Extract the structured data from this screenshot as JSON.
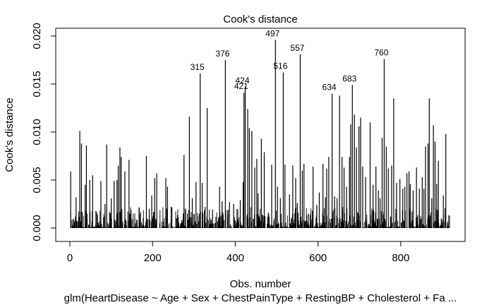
{
  "chart_data": {
    "type": "bar",
    "title": "Cook's distance",
    "xlabel": "Obs. number",
    "ylabel": "Cook's distance",
    "subtitle": "glm(HeartDisease ~ Age + Sex + ChestPainType + RestingBP + Cholesterol + Fa ...",
    "xlim": [
      0,
      918
    ],
    "ylim": [
      0.0,
      0.02
    ],
    "x_ticks": [
      0,
      200,
      400,
      600,
      800
    ],
    "y_ticks": [
      0.0,
      0.005,
      0.01,
      0.015,
      0.02
    ],
    "x_tick_labels": [
      "0",
      "200",
      "400",
      "600",
      "800"
    ],
    "y_tick_labels": [
      "0.000",
      "0.005",
      "0.010",
      "0.015",
      "0.020"
    ],
    "n_obs": 918,
    "grid": false,
    "labeled_points": [
      {
        "x": 315,
        "y": 0.0161,
        "label": "315"
      },
      {
        "x": 376,
        "y": 0.0175,
        "label": "376"
      },
      {
        "x": 421,
        "y": 0.0141,
        "label": "421"
      },
      {
        "x": 424,
        "y": 0.0147,
        "label": "424"
      },
      {
        "x": 497,
        "y": 0.0196,
        "label": "497"
      },
      {
        "x": 516,
        "y": 0.0162,
        "label": "516"
      },
      {
        "x": 557,
        "y": 0.0181,
        "label": "557"
      },
      {
        "x": 634,
        "y": 0.014,
        "label": "634"
      },
      {
        "x": 683,
        "y": 0.0149,
        "label": "683"
      },
      {
        "x": 760,
        "y": 0.0176,
        "label": "760"
      }
    ],
    "spikes": [
      [
        2,
        0.0059
      ],
      [
        15,
        0.0032
      ],
      [
        24,
        0.0101
      ],
      [
        28,
        0.0088
      ],
      [
        37,
        0.0045
      ],
      [
        40,
        0.0086
      ],
      [
        48,
        0.005
      ],
      [
        55,
        0.0055
      ],
      [
        63,
        0.0018
      ],
      [
        75,
        0.0049
      ],
      [
        85,
        0.0025
      ],
      [
        89,
        0.0087
      ],
      [
        100,
        0.0031
      ],
      [
        107,
        0.0049
      ],
      [
        114,
        0.005
      ],
      [
        117,
        0.0065
      ],
      [
        121,
        0.0084
      ],
      [
        124,
        0.0074
      ],
      [
        133,
        0.0059
      ],
      [
        143,
        0.0071
      ],
      [
        157,
        0.001
      ],
      [
        170,
        0.0008
      ],
      [
        185,
        0.0075
      ],
      [
        192,
        0.002
      ],
      [
        198,
        0.0034
      ],
      [
        205,
        0.0052
      ],
      [
        210,
        0.0057
      ],
      [
        232,
        0.0052
      ],
      [
        236,
        0.0043
      ],
      [
        245,
        0.0022
      ],
      [
        268,
        0.0005
      ],
      [
        276,
        0.0076
      ],
      [
        289,
        0.0116
      ],
      [
        296,
        0.0031
      ],
      [
        305,
        0.0048
      ],
      [
        315,
        0.0161
      ],
      [
        320,
        0.0047
      ],
      [
        327,
        0.0022
      ],
      [
        332,
        0.0125
      ],
      [
        345,
        0.0019
      ],
      [
        362,
        0.0043
      ],
      [
        368,
        0.0028
      ],
      [
        376,
        0.0175
      ],
      [
        386,
        0.0027
      ],
      [
        396,
        0.0025
      ],
      [
        412,
        0.0029
      ],
      [
        419,
        0.0048
      ],
      [
        421,
        0.0141
      ],
      [
        424,
        0.0147
      ],
      [
        430,
        0.0124
      ],
      [
        434,
        0.0104
      ],
      [
        440,
        0.0101
      ],
      [
        447,
        0.0063
      ],
      [
        452,
        0.0072
      ],
      [
        455,
        0.0036
      ],
      [
        463,
        0.0093
      ],
      [
        470,
        0.0079
      ],
      [
        480,
        0.0016
      ],
      [
        488,
        0.0066
      ],
      [
        497,
        0.0196
      ],
      [
        502,
        0.0043
      ],
      [
        509,
        0.0031
      ],
      [
        516,
        0.0162
      ],
      [
        520,
        0.0066
      ],
      [
        531,
        0.0035
      ],
      [
        539,
        0.0065
      ],
      [
        546,
        0.0052
      ],
      [
        550,
        0.0026
      ],
      [
        557,
        0.0181
      ],
      [
        562,
        0.006
      ],
      [
        566,
        0.0067
      ],
      [
        577,
        0.0015
      ],
      [
        588,
        0.0064
      ],
      [
        597,
        0.0024
      ],
      [
        603,
        0.0037
      ],
      [
        612,
        0.0067
      ],
      [
        618,
        0.0032
      ],
      [
        621,
        0.0062
      ],
      [
        626,
        0.0074
      ],
      [
        634,
        0.014
      ],
      [
        640,
        0.0033
      ],
      [
        646,
        0.0031
      ],
      [
        652,
        0.0138
      ],
      [
        658,
        0.0074
      ],
      [
        663,
        0.0063
      ],
      [
        669,
        0.0043
      ],
      [
        676,
        0.0074
      ],
      [
        679,
        0.0108
      ],
      [
        683,
        0.0149
      ],
      [
        688,
        0.0118
      ],
      [
        693,
        0.0084
      ],
      [
        699,
        0.0106
      ],
      [
        703,
        0.0115
      ],
      [
        708,
        0.0064
      ],
      [
        715,
        0.0053
      ],
      [
        726,
        0.011
      ],
      [
        733,
        0.0045
      ],
      [
        740,
        0.0064
      ],
      [
        746,
        0.0039
      ],
      [
        750,
        0.0031
      ],
      [
        755,
        0.0094
      ],
      [
        760,
        0.0176
      ],
      [
        765,
        0.0085
      ],
      [
        770,
        0.0062
      ],
      [
        778,
        0.0065
      ],
      [
        783,
        0.0135
      ],
      [
        790,
        0.0047
      ],
      [
        798,
        0.0051
      ],
      [
        805,
        0.0041
      ],
      [
        810,
        0.0043
      ],
      [
        815,
        0.0057
      ],
      [
        820,
        0.0059
      ],
      [
        823,
        0.0046
      ],
      [
        830,
        0.0039
      ],
      [
        838,
        0.0063
      ],
      [
        845,
        0.0041
      ],
      [
        852,
        0.0053
      ],
      [
        856,
        0.0041
      ],
      [
        860,
        0.0085
      ],
      [
        866,
        0.0088
      ],
      [
        869,
        0.0135
      ],
      [
        875,
        0.0031
      ],
      [
        879,
        0.0107
      ],
      [
        883,
        0.009
      ],
      [
        887,
        0.0046
      ],
      [
        891,
        0.007
      ],
      [
        898,
        0.001
      ],
      [
        903,
        0.0034
      ],
      [
        909,
        0.0098
      ]
    ]
  }
}
